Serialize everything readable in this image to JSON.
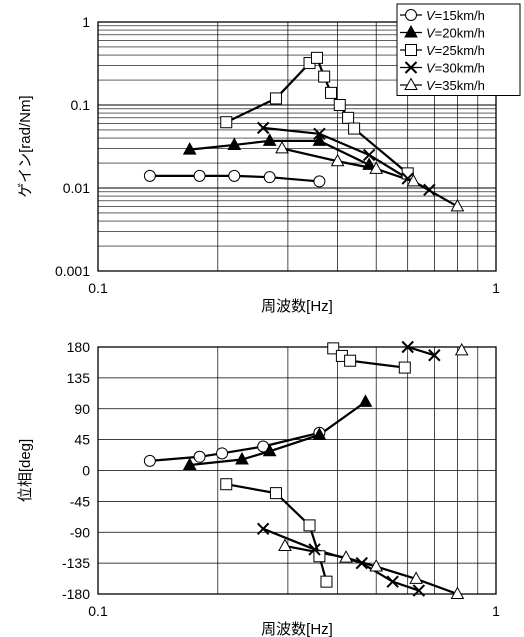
{
  "chart_data": [
    {
      "type": "line",
      "xscale": "log",
      "yscale": "log",
      "xlim": [
        0.1,
        1
      ],
      "ylim": [
        0.001,
        1
      ],
      "xlabel": "周波数[Hz]",
      "ylabel": "ゲイン[rad/Nm]",
      "x_tick_labels": [
        "0.1",
        "1"
      ],
      "y_tick_labels": [
        "0.001",
        "0.01",
        "0.1",
        "1"
      ],
      "grid": "horizontal-minor-and-vertical-minor",
      "legend_position": "top-right",
      "series": [
        {
          "name": "V=15km/h",
          "marker": "circle-open",
          "points": [
            [
              0.135,
              0.014
            ],
            [
              0.18,
              0.014
            ],
            [
              0.22,
              0.014
            ],
            [
              0.27,
              0.0135
            ],
            [
              0.36,
              0.012
            ]
          ]
        },
        {
          "name": "V=20km/h",
          "marker": "triangle-filled",
          "points": [
            [
              0.17,
              0.029
            ],
            [
              0.22,
              0.033
            ],
            [
              0.27,
              0.037
            ],
            [
              0.36,
              0.037
            ],
            [
              0.48,
              0.019
            ]
          ]
        },
        {
          "name": "V=25km/h",
          "marker": "square-open",
          "points": [
            [
              0.21,
              0.062
            ],
            [
              0.28,
              0.12
            ],
            [
              0.34,
              0.32
            ],
            [
              0.355,
              0.37
            ],
            [
              0.37,
              0.22
            ],
            [
              0.385,
              0.14
            ],
            [
              0.405,
              0.1
            ],
            [
              0.425,
              0.07
            ],
            [
              0.44,
              0.052
            ],
            [
              0.6,
              0.015
            ]
          ]
        },
        {
          "name": "V=30km/h",
          "marker": "x",
          "points": [
            [
              0.26,
              0.053
            ],
            [
              0.36,
              0.045
            ],
            [
              0.48,
              0.025
            ],
            [
              0.6,
              0.013
            ],
            [
              0.68,
              0.0095
            ]
          ]
        },
        {
          "name": "V=35km/h",
          "marker": "triangle-open",
          "points": [
            [
              0.29,
              0.03
            ],
            [
              0.4,
              0.021
            ],
            [
              0.5,
              0.017
            ],
            [
              0.62,
              0.012
            ],
            [
              0.8,
              0.006
            ]
          ]
        }
      ]
    },
    {
      "type": "line",
      "xscale": "log",
      "xlim": [
        0.1,
        1
      ],
      "ylim": [
        -180,
        180
      ],
      "xlabel": "周波数[Hz]",
      "ylabel": "位相[deg]",
      "x_tick_labels": [
        "0.1",
        "1"
      ],
      "y_ticks": [
        180,
        135,
        90,
        45,
        0,
        -45,
        -90,
        -135,
        -180
      ],
      "grid": "horizontal-major-and-vertical-minor",
      "series": [
        {
          "name": "V=15km/h",
          "marker": "circle-open",
          "points": [
            [
              0.135,
              14
            ],
            [
              0.18,
              20
            ],
            [
              0.205,
              25
            ],
            [
              0.26,
              35
            ],
            [
              0.36,
              55
            ]
          ]
        },
        {
          "name": "V=20km/h",
          "marker": "triangle-filled",
          "points": [
            [
              0.17,
              8
            ],
            [
              0.23,
              16
            ],
            [
              0.27,
              28
            ],
            [
              0.36,
              52
            ],
            [
              0.47,
              100
            ]
          ]
        },
        {
          "name": "V=25km/h",
          "marker": "square-open",
          "points": [
            [
              0.21,
              -20
            ],
            [
              0.28,
              -33
            ],
            [
              0.34,
              -80
            ],
            [
              0.36,
              -125
            ],
            [
              0.375,
              -162
            ]
          ]
        },
        {
          "name": "V=25km/h",
          "marker": "square-open",
          "points": [
            [
              0.39,
              178
            ],
            [
              0.41,
              167
            ],
            [
              0.43,
              160
            ],
            [
              0.59,
              150
            ]
          ]
        },
        {
          "name": "V=30km/h",
          "marker": "x",
          "points": [
            [
              0.26,
              -85
            ],
            [
              0.35,
              -115
            ],
            [
              0.46,
              -135
            ],
            [
              0.55,
              -162
            ],
            [
              0.64,
              -175
            ]
          ]
        },
        {
          "name": "V=30km/h",
          "marker": "x",
          "points": [
            [
              0.6,
              180
            ],
            [
              0.7,
              168
            ]
          ]
        },
        {
          "name": "V=35km/h",
          "marker": "triangle-open",
          "points": [
            [
              0.295,
              -110
            ],
            [
              0.42,
              -127
            ],
            [
              0.5,
              -140
            ],
            [
              0.63,
              -158
            ],
            [
              0.8,
              -180
            ]
          ]
        },
        {
          "name": "V=35km/h",
          "marker": "triangle-open",
          "points": [
            [
              0.82,
              175
            ]
          ]
        }
      ]
    }
  ]
}
